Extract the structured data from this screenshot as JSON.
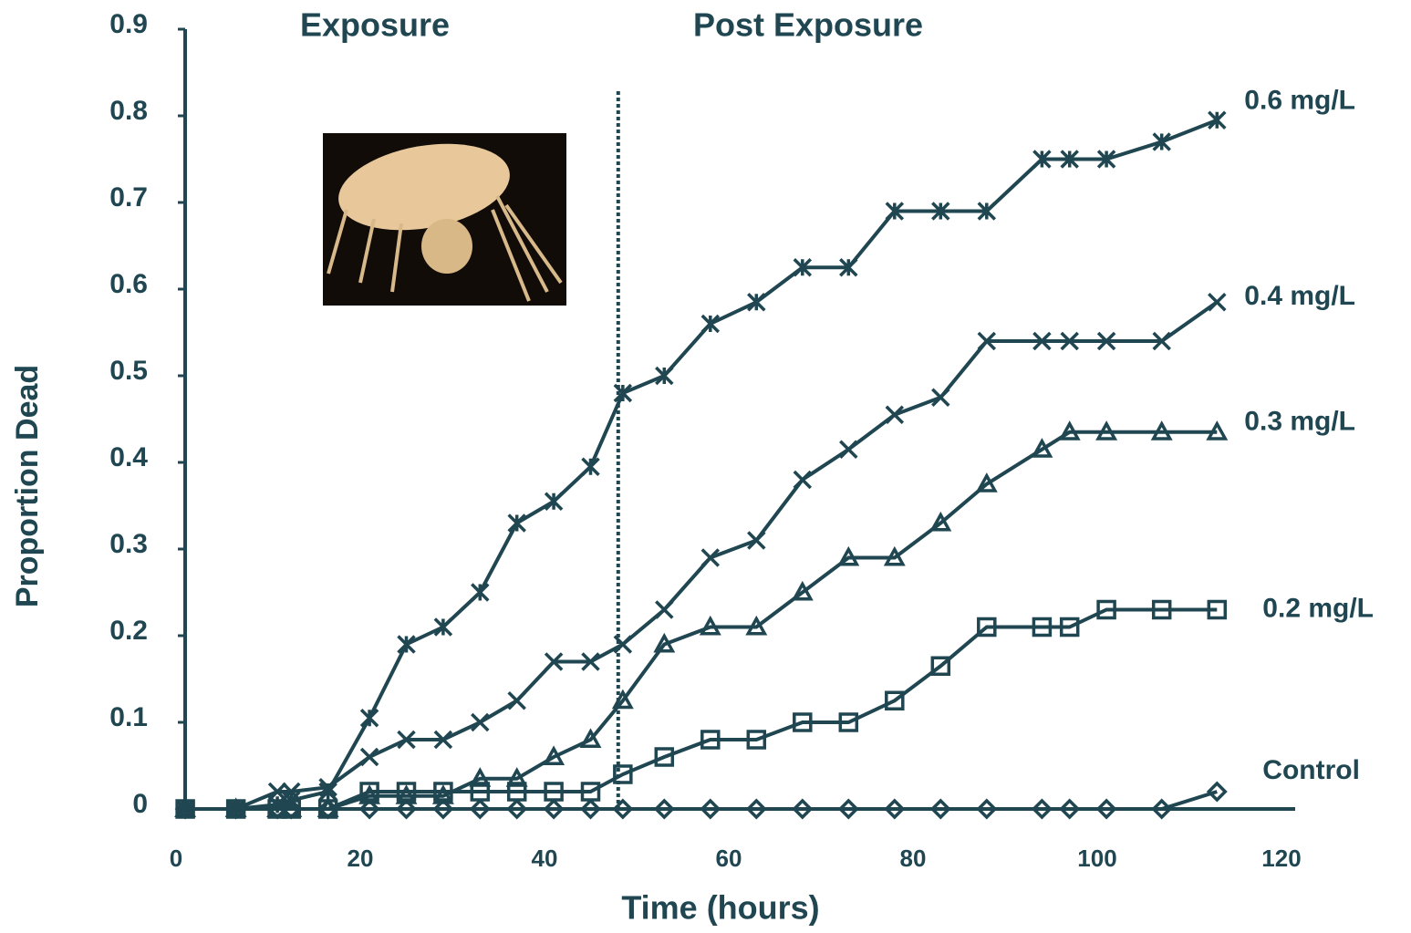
{
  "chart_data": {
    "type": "line",
    "ylabel": "Proportion Dead",
    "xlabel": "Time (hours)",
    "annotations": [
      "Exposure",
      "Post Exposure"
    ],
    "vline": 48,
    "xlim": [
      0,
      120
    ],
    "xticks": [
      0,
      20,
      40,
      60,
      80,
      100,
      120
    ],
    "ylim": [
      0,
      0.9
    ],
    "yticks": [
      0,
      0.1,
      0.2,
      0.3,
      0.4,
      0.5,
      0.6,
      0.7,
      0.8,
      0.9
    ],
    "x": [
      1,
      6.5,
      11,
      12.5,
      16.5,
      21,
      25,
      29,
      33,
      37,
      41,
      45,
      48.5,
      53,
      58,
      63,
      68,
      73,
      78,
      83,
      88,
      94,
      97,
      101,
      107,
      113
    ],
    "series": [
      {
        "name": "0.6 mg/L",
        "color": "#1f4651",
        "marker": "star",
        "values": [
          0,
          0,
          0.005,
          0.01,
          0.02,
          0.105,
          0.19,
          0.21,
          0.25,
          0.33,
          0.355,
          0.395,
          0.48,
          0.5,
          0.56,
          0.585,
          0.625,
          0.625,
          0.69,
          0.69,
          0.69,
          0.75,
          0.75,
          0.75,
          0.77,
          0.795
        ]
      },
      {
        "name": "0.4 mg/L",
        "color": "#1f4651",
        "marker": "x",
        "values": [
          0,
          0,
          0.02,
          0.02,
          0.025,
          0.06,
          0.08,
          0.08,
          0.1,
          0.125,
          0.17,
          0.17,
          0.19,
          0.23,
          0.29,
          0.31,
          0.38,
          0.415,
          0.455,
          0.475,
          0.54,
          0.54,
          0.54,
          0.54,
          0.54,
          0.585
        ]
      },
      {
        "name": "0.3 mg/L",
        "color": "#1f4651",
        "marker": "triangle",
        "values": [
          0,
          0,
          0,
          0,
          0,
          0.015,
          0.015,
          0.015,
          0.035,
          0.035,
          0.06,
          0.08,
          0.125,
          0.19,
          0.21,
          0.21,
          0.25,
          0.29,
          0.29,
          0.33,
          0.375,
          0.415,
          0.435,
          0.435,
          0.435,
          0.435
        ]
      },
      {
        "name": "0.2 mg/L",
        "color": "#1f4651",
        "marker": "square",
        "values": [
          0,
          0,
          0,
          0,
          0,
          0.02,
          0.02,
          0.02,
          0.02,
          0.02,
          0.02,
          0.02,
          0.04,
          0.06,
          0.08,
          0.08,
          0.1,
          0.1,
          0.125,
          0.165,
          0.21,
          0.21,
          0.21,
          0.23,
          0.23,
          0.23
        ]
      },
      {
        "name": "Control",
        "color": "#1f4651",
        "marker": "diamond",
        "values": [
          0,
          0,
          0,
          0,
          0,
          0,
          0,
          0,
          0,
          0,
          0,
          0,
          0,
          0,
          0,
          0,
          0,
          0,
          0,
          0,
          0,
          0,
          0,
          0,
          0,
          0.02
        ]
      }
    ]
  }
}
